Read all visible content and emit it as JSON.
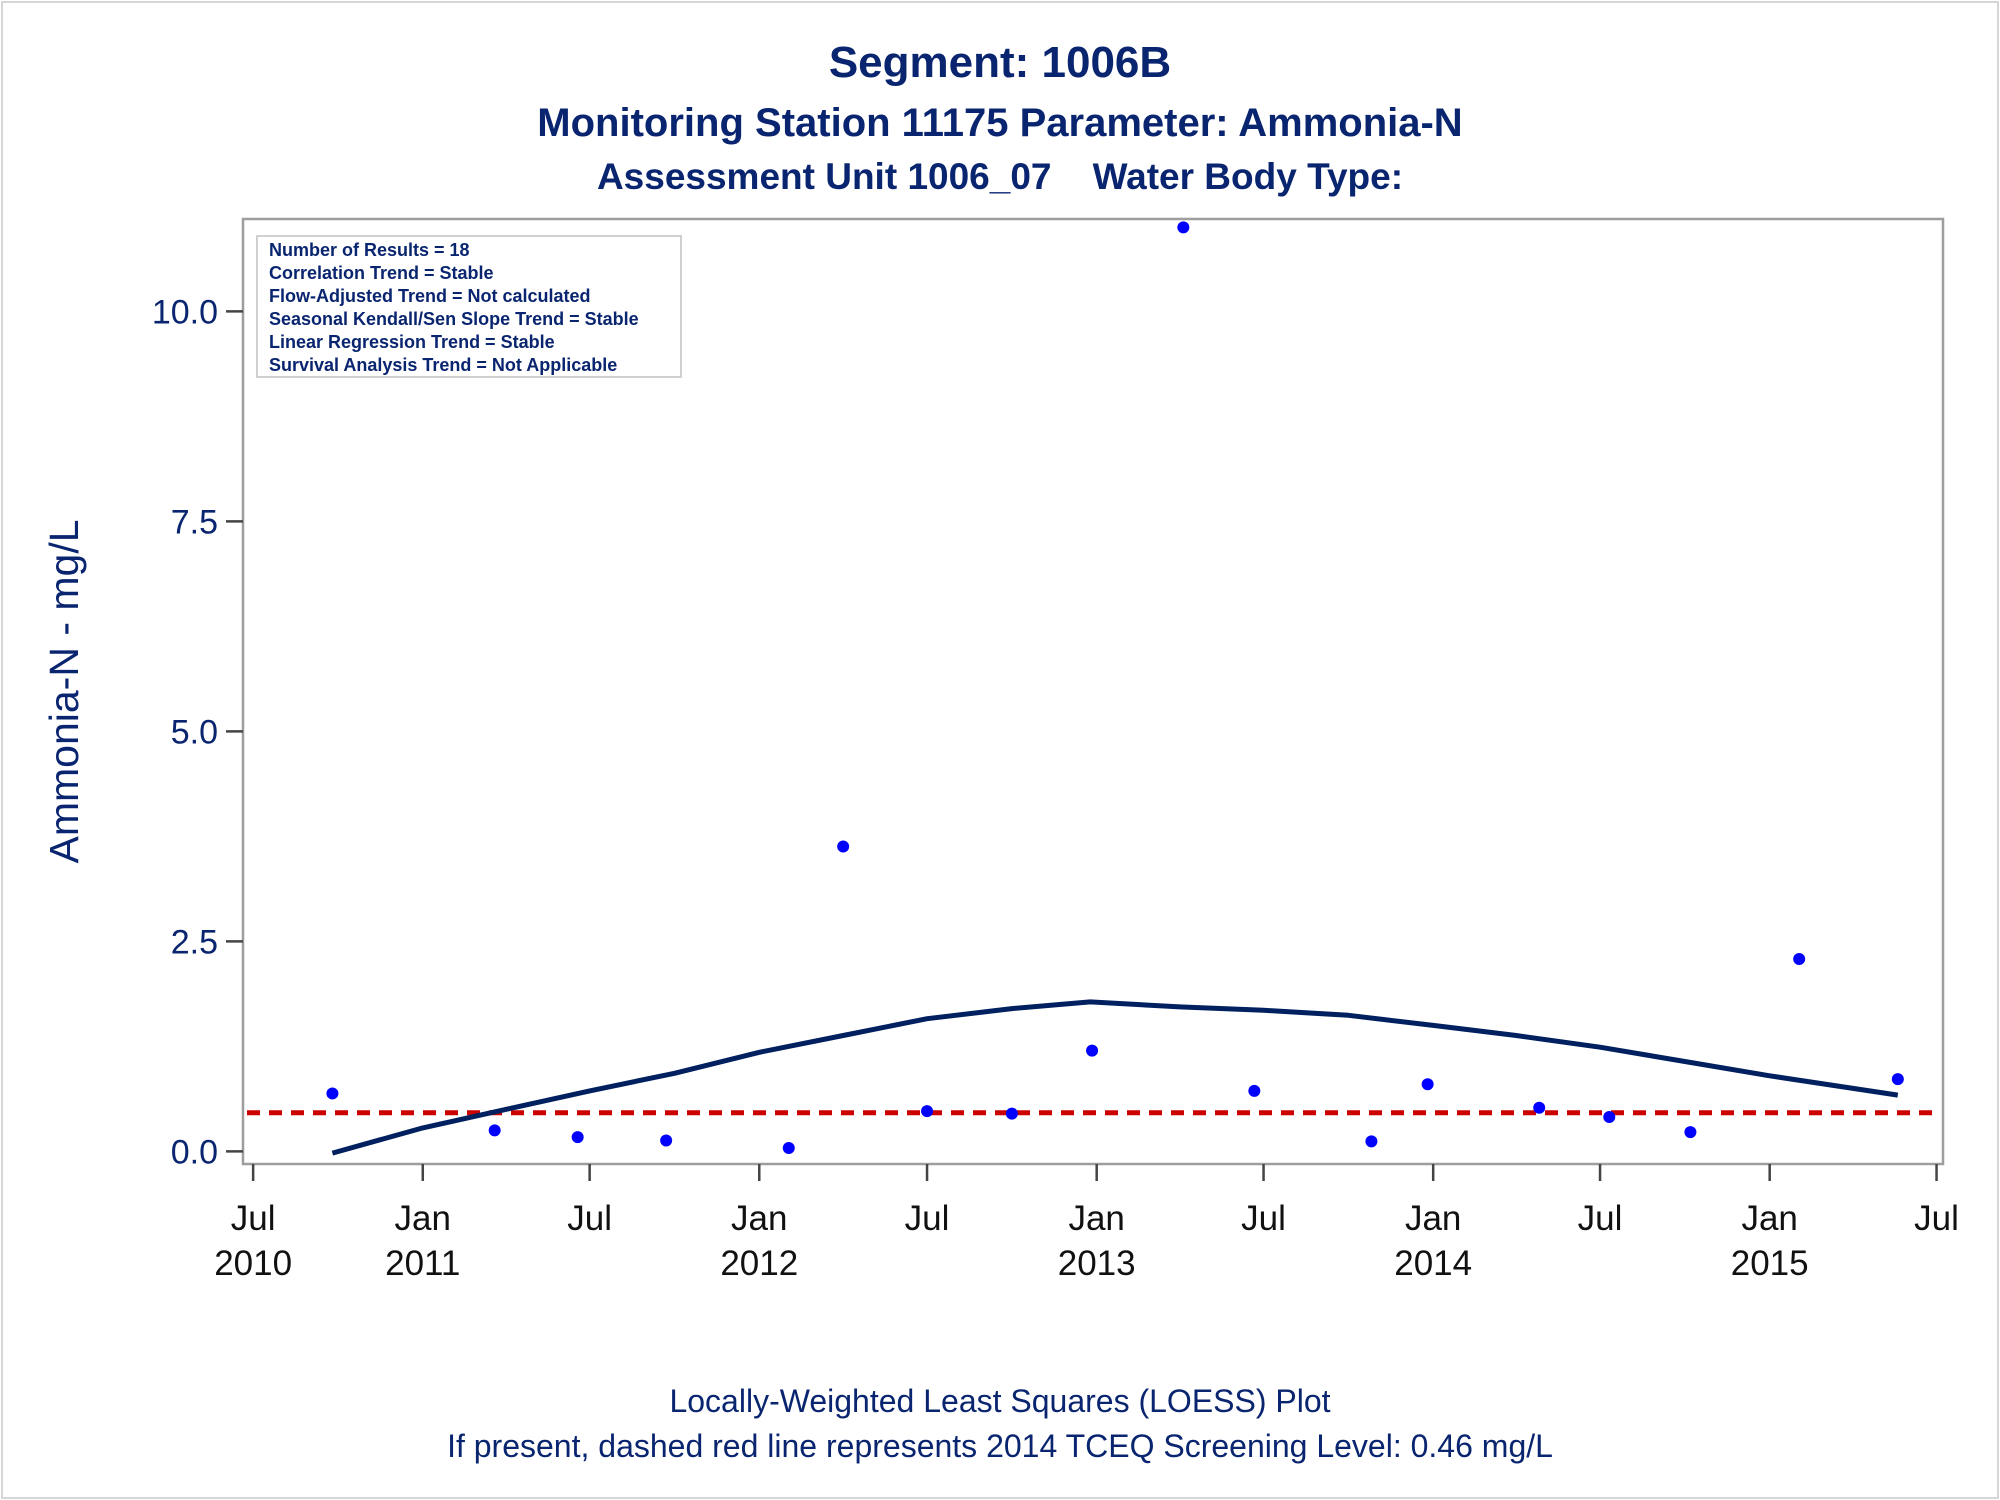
{
  "header": {
    "title": "Segment: 1006B",
    "subtitle": "Monitoring Station 11175 Parameter: Ammonia-N",
    "subtitle2": "Assessment Unit 1006_07    Water Body Type:"
  },
  "footer": {
    "line1": "Locally-Weighted Least Squares (LOESS) Plot",
    "line2": "If present, dashed red line represents 2014 TCEQ Screening Level: 0.46 mg/L"
  },
  "colors": {
    "text": "#0a2570",
    "points": "#0000ff",
    "loess": "#00205f",
    "screening": "#cc0000",
    "axis": "#9e9e9e"
  },
  "chart_data": {
    "type": "scatter",
    "ylabel": "Ammonia-N - mg/L",
    "xlabel": "",
    "ylim": [
      -0.15,
      11.1
    ],
    "xlim": [
      "2010-06-20",
      "2015-07-08"
    ],
    "yticks": [
      "0.0",
      "2.5",
      "5.0",
      "7.5",
      "10.0"
    ],
    "yticks_values": [
      0,
      2.5,
      5,
      7.5,
      10
    ],
    "xticks": [
      {
        "date": "2010-07-01",
        "label1": "Jul",
        "label2": "2010"
      },
      {
        "date": "2011-01-01",
        "label1": "Jan",
        "label2": "2011"
      },
      {
        "date": "2011-07-01",
        "label1": "Jul",
        "label2": ""
      },
      {
        "date": "2012-01-01",
        "label1": "Jan",
        "label2": "2012"
      },
      {
        "date": "2012-07-01",
        "label1": "Jul",
        "label2": ""
      },
      {
        "date": "2013-01-01",
        "label1": "Jan",
        "label2": "2013"
      },
      {
        "date": "2013-07-01",
        "label1": "Jul",
        "label2": ""
      },
      {
        "date": "2014-01-01",
        "label1": "Jan",
        "label2": "2014"
      },
      {
        "date": "2014-07-01",
        "label1": "Jul",
        "label2": ""
      },
      {
        "date": "2015-01-01",
        "label1": "Jan",
        "label2": "2015"
      },
      {
        "date": "2015-07-01",
        "label1": "Jul",
        "label2": ""
      }
    ],
    "series": [
      {
        "type": "scatter",
        "points": [
          {
            "x": "2010-09-25",
            "y": 0.69
          },
          {
            "x": "2011-03-20",
            "y": 0.25
          },
          {
            "x": "2011-06-18",
            "y": 0.17
          },
          {
            "x": "2011-09-22",
            "y": 0.13
          },
          {
            "x": "2012-02-02",
            "y": 0.04
          },
          {
            "x": "2012-04-01",
            "y": 3.63
          },
          {
            "x": "2012-07-01",
            "y": 0.48
          },
          {
            "x": "2012-10-01",
            "y": 0.45
          },
          {
            "x": "2012-12-27",
            "y": 1.2
          },
          {
            "x": "2013-04-05",
            "y": 11.0
          },
          {
            "x": "2013-06-21",
            "y": 0.72
          },
          {
            "x": "2013-10-26",
            "y": 0.12
          },
          {
            "x": "2013-12-26",
            "y": 0.8
          },
          {
            "x": "2014-04-26",
            "y": 0.52
          },
          {
            "x": "2014-07-11",
            "y": 0.41
          },
          {
            "x": "2014-10-07",
            "y": 0.23
          },
          {
            "x": "2015-02-02",
            "y": 2.29
          },
          {
            "x": "2015-05-20",
            "y": 0.86
          }
        ]
      },
      {
        "type": "line",
        "points": [
          {
            "x": "2010-09-25",
            "y": -0.02
          },
          {
            "x": "2011-01-01",
            "y": 0.28
          },
          {
            "x": "2011-04-01",
            "y": 0.5
          },
          {
            "x": "2011-07-01",
            "y": 0.72
          },
          {
            "x": "2011-10-01",
            "y": 0.93
          },
          {
            "x": "2012-01-01",
            "y": 1.18
          },
          {
            "x": "2012-04-01",
            "y": 1.38
          },
          {
            "x": "2012-07-01",
            "y": 1.58
          },
          {
            "x": "2012-10-01",
            "y": 1.7
          },
          {
            "x": "2012-12-25",
            "y": 1.78
          },
          {
            "x": "2013-04-01",
            "y": 1.72
          },
          {
            "x": "2013-07-01",
            "y": 1.68
          },
          {
            "x": "2013-10-01",
            "y": 1.62
          },
          {
            "x": "2014-01-01",
            "y": 1.5
          },
          {
            "x": "2014-04-01",
            "y": 1.38
          },
          {
            "x": "2014-07-01",
            "y": 1.24
          },
          {
            "x": "2014-10-01",
            "y": 1.07
          },
          {
            "x": "2015-01-01",
            "y": 0.9
          },
          {
            "x": "2015-05-20",
            "y": 0.67
          }
        ]
      },
      {
        "type": "reference-line",
        "y": 0.46
      }
    ],
    "annotations": [
      "Number of Results = 18",
      "Correlation Trend = Stable",
      "Flow-Adjusted Trend = Not calculated",
      "Seasonal Kendall/Sen Slope Trend = Stable",
      "Linear Regression Trend = Stable",
      "Survival Analysis Trend = Not Applicable"
    ]
  }
}
